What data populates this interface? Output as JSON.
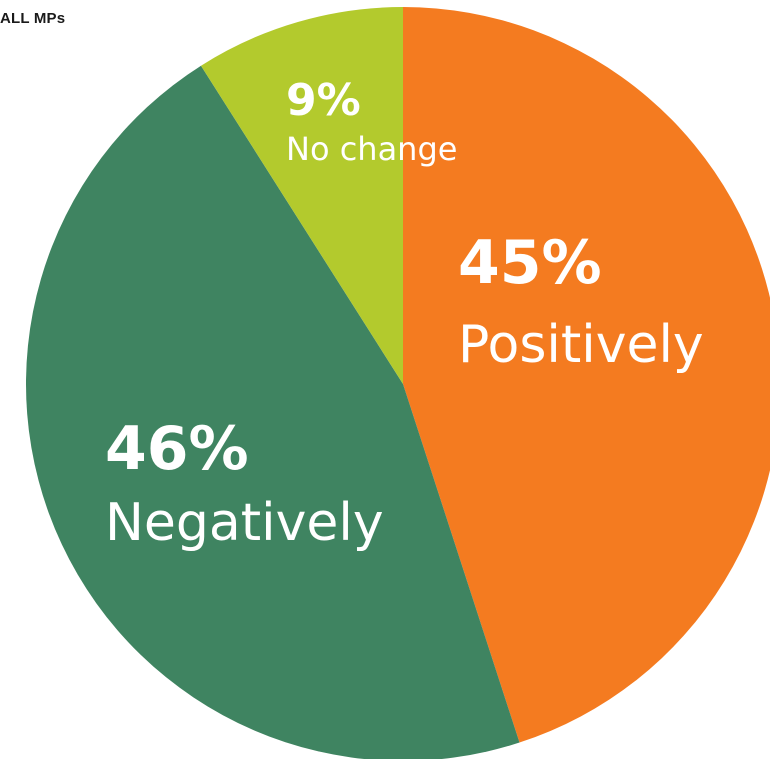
{
  "chart_data": {
    "type": "pie",
    "title": "ALL MPs",
    "slices": [
      {
        "label": "Positively",
        "value": 45,
        "value_label": "45%",
        "color": "#f47b20"
      },
      {
        "label": "Negatively",
        "value": 46,
        "value_label": "46%",
        "color": "#3f8461"
      },
      {
        "label": "No change",
        "value": 9,
        "value_label": "9%",
        "color": "#b3ca2d"
      }
    ]
  }
}
